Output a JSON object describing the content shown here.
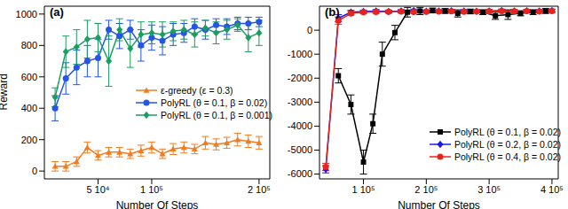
{
  "chart_data": [
    {
      "type": "line",
      "title": "(a)",
      "x_label": "Number Of Steps",
      "y_label": "Reward",
      "xlim": [
        0,
        210000
      ],
      "xticks": [
        {
          "value": 50000,
          "label": "5 10⁴"
        },
        {
          "value": 100000,
          "label": "1 10⁵"
        },
        {
          "value": 200000,
          "label": "2 10⁵"
        }
      ],
      "ylim": [
        -50,
        1050
      ],
      "yticks": [
        0,
        200,
        400,
        600,
        800,
        1000
      ],
      "legend": "center right",
      "series": [
        {
          "name": "ε-greedy (ε = 0.3)",
          "color": "#f27b20",
          "marker": "triangle",
          "x": [
            10000,
            20000,
            30000,
            40000,
            50000,
            60000,
            70000,
            80000,
            90000,
            100000,
            110000,
            120000,
            130000,
            140000,
            150000,
            160000,
            170000,
            180000,
            190000,
            200000
          ],
          "values": [
            30,
            30,
            60,
            150,
            100,
            120,
            120,
            110,
            130,
            150,
            110,
            140,
            150,
            140,
            180,
            170,
            180,
            200,
            190,
            180
          ],
          "errors": [
            30,
            30,
            30,
            35,
            30,
            30,
            30,
            30,
            35,
            35,
            30,
            35,
            35,
            30,
            40,
            35,
            35,
            40,
            40,
            40
          ]
        },
        {
          "name": "PolyRL (θ = 0.1, β = 0.02)",
          "color": "#2255e8",
          "marker": "circle",
          "x": [
            10000,
            20000,
            30000,
            40000,
            50000,
            60000,
            70000,
            80000,
            90000,
            100000,
            110000,
            120000,
            130000,
            140000,
            150000,
            160000,
            170000,
            180000,
            190000,
            200000
          ],
          "values": [
            400,
            590,
            660,
            700,
            720,
            900,
            860,
            900,
            800,
            850,
            830,
            870,
            880,
            920,
            900,
            930,
            920,
            940,
            940,
            950
          ],
          "errors": [
            80,
            100,
            110,
            100,
            120,
            60,
            80,
            60,
            100,
            80,
            90,
            70,
            60,
            50,
            60,
            40,
            50,
            40,
            40,
            30
          ]
        },
        {
          "name": "PolyRL (θ = 0.1, β = 0.001)",
          "color": "#1a9e60",
          "marker": "diamond",
          "x": [
            10000,
            20000,
            30000,
            40000,
            50000,
            60000,
            70000,
            80000,
            90000,
            100000,
            110000,
            120000,
            130000,
            140000,
            150000,
            160000,
            170000,
            180000,
            190000,
            200000
          ],
          "values": [
            470,
            760,
            790,
            840,
            850,
            700,
            900,
            780,
            870,
            880,
            870,
            890,
            900,
            870,
            910,
            880,
            900,
            930,
            850,
            880
          ],
          "errors": [
            60,
            100,
            110,
            120,
            90,
            160,
            70,
            120,
            80,
            70,
            80,
            60,
            60,
            80,
            50,
            70,
            60,
            40,
            90,
            80
          ]
        }
      ]
    },
    {
      "type": "line",
      "title": "(b)",
      "x_label": "Number Of Steps",
      "xlim": [
        30000,
        410000
      ],
      "xticks": [
        {
          "value": 100000,
          "label": "1 10⁵"
        },
        {
          "value": 200000,
          "label": "2 10⁵"
        },
        {
          "value": 300000,
          "label": "3 10⁵"
        },
        {
          "value": 400000,
          "label": "4 10⁵"
        }
      ],
      "ylim": [
        -6200,
        1000
      ],
      "yticks": [
        -6000,
        -5000,
        -4000,
        -3000,
        -2000,
        -1000,
        0
      ],
      "legend": "lower right",
      "series": [
        {
          "name": "PolyRL (θ = 0.1, β = 0.02)",
          "color": "#000000",
          "marker": "square",
          "x": [
            60000,
            80000,
            100000,
            115000,
            130000,
            150000,
            170000,
            190000,
            210000,
            230000,
            250000,
            270000,
            290000,
            310000,
            330000,
            350000,
            370000,
            390000
          ],
          "values": [
            -1900,
            -3100,
            -5500,
            -3900,
            -1000,
            -100,
            750,
            800,
            820,
            800,
            700,
            780,
            750,
            600,
            650,
            700,
            750,
            800
          ],
          "errors": [
            300,
            400,
            500,
            400,
            500,
            300,
            200,
            150,
            100,
            100,
            150,
            100,
            100,
            150,
            200,
            100,
            100,
            100
          ]
        },
        {
          "name": "PolyRL (θ = 0.2, β = 0.02)",
          "color": "#1a1ae8",
          "marker": "diamond",
          "x": [
            40000,
            60000,
            80000,
            100000,
            120000,
            140000,
            160000,
            180000,
            200000,
            220000,
            240000,
            260000,
            280000,
            300000,
            320000,
            340000,
            360000,
            380000,
            400000
          ],
          "values": [
            -5800,
            500,
            750,
            780,
            800,
            780,
            800,
            820,
            790,
            800,
            810,
            800,
            790,
            800,
            820,
            800,
            810,
            800,
            820
          ],
          "errors": [
            150,
            150,
            80,
            60,
            60,
            60,
            60,
            60,
            60,
            60,
            60,
            60,
            60,
            60,
            60,
            60,
            60,
            60,
            60
          ]
        },
        {
          "name": "PolyRL (θ = 0.4, β = 0.02)",
          "color": "#e8231a",
          "marker": "circle",
          "x": [
            40000,
            60000,
            80000,
            100000,
            120000,
            140000,
            160000,
            180000,
            200000,
            220000,
            240000,
            260000,
            280000,
            300000,
            320000,
            340000,
            360000,
            380000,
            400000
          ],
          "values": [
            -5700,
            400,
            700,
            750,
            760,
            770,
            780,
            760,
            770,
            780,
            790,
            770,
            780,
            790,
            800,
            790,
            800,
            780,
            800
          ],
          "errors": [
            150,
            150,
            80,
            60,
            60,
            60,
            60,
            60,
            60,
            60,
            60,
            60,
            60,
            60,
            60,
            60,
            60,
            60,
            60
          ]
        }
      ]
    }
  ]
}
